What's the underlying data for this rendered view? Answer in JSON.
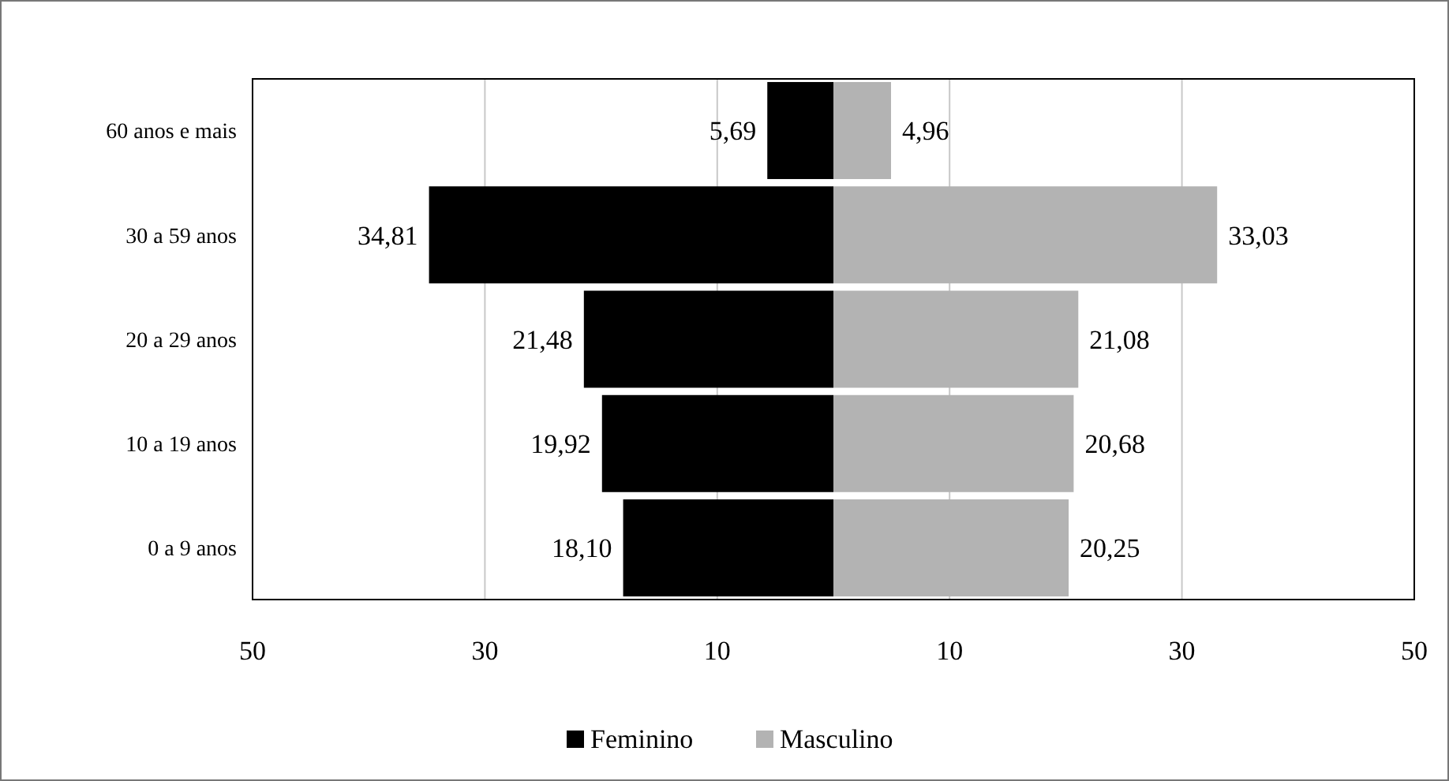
{
  "chart_data": {
    "type": "bar",
    "orientation": "horizontal",
    "categories": [
      "60 anos e mais",
      "30 a 59 anos",
      "20 a 29 anos",
      "10 a 19 anos",
      "0 a 9 anos"
    ],
    "series": [
      {
        "name": "Feminino",
        "color": "#000000",
        "values": [
          5.69,
          34.81,
          21.48,
          19.92,
          18.1
        ],
        "base": [
          -5.69,
          -34.81,
          -21.48,
          -19.92,
          -18.1
        ],
        "value_labels": [
          "5,69",
          "34,81",
          "21,48",
          "19,92",
          "18,10"
        ]
      },
      {
        "name": "Masculino",
        "color": "#b3b3b3",
        "values": [
          4.96,
          33.03,
          21.08,
          20.68,
          20.25
        ],
        "value_labels": [
          "4,96",
          "33,03",
          "21,08",
          "20,68",
          "20,25"
        ]
      }
    ],
    "xlim": [
      -50,
      50
    ],
    "xticks": [
      {
        "value": -50,
        "label": "50"
      },
      {
        "value": -30,
        "label": "30"
      },
      {
        "value": -10,
        "label": "10"
      },
      {
        "value": 10,
        "label": "10"
      },
      {
        "value": 30,
        "label": "30"
      },
      {
        "value": 50,
        "label": "50"
      }
    ],
    "grid": "x",
    "legend": "bottom"
  }
}
